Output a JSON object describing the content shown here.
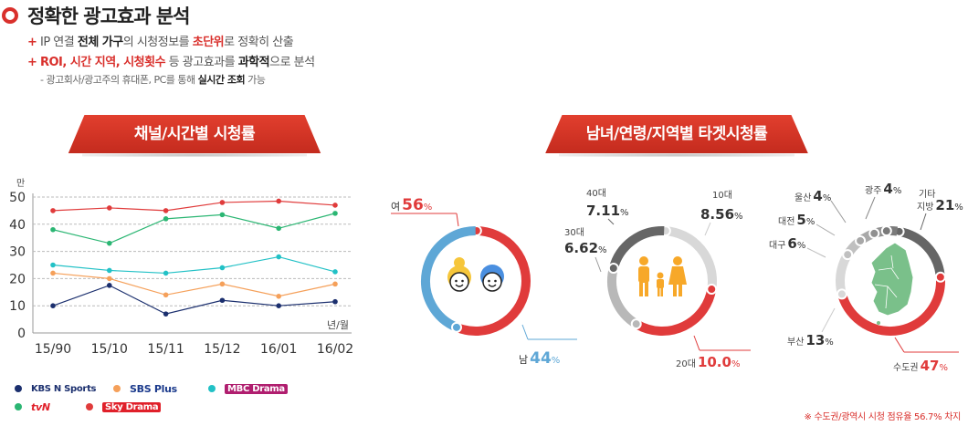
{
  "header": {
    "title": "정확한 광고효과 분석",
    "bullet1": {
      "plus": "+",
      "part1": "IP 연결 ",
      "part2": "전체 가구",
      "part3": "의 시청정보를 ",
      "part4": "초단위",
      "part5": "로 정확히 산출"
    },
    "bullet2": {
      "plus": "+",
      "part1": "ROI, 시간 지역, 시청횟수",
      "part2": " 등 광고효과를 ",
      "part3": "과학적",
      "part4": "으로 분석"
    },
    "subnote": {
      "part1": "- 광고회사/광고주의 휴대폰, PC를 통해 ",
      "part2": "실시간 조회",
      "part3": " 가능"
    },
    "accent_color": "#d9302c"
  },
  "ribbons": {
    "left": "채널/시간별 시청률",
    "right": "남녀/연령/지역별 타겟시청률"
  },
  "chart_data": [
    {
      "type": "line",
      "title": "채널/시간별 시청률",
      "ylabel": "만",
      "xlabel": "년/월",
      "categories": [
        "15/90",
        "15/10",
        "15/11",
        "15/12",
        "16/01",
        "16/02"
      ],
      "ylim": [
        0,
        50
      ],
      "yticks": [
        0,
        10,
        20,
        30,
        40,
        50
      ],
      "grid": true,
      "series": [
        {
          "name": "KBS N Sports",
          "color": "#1b2f6e",
          "values": [
            10,
            17.5,
            7,
            12,
            10,
            11.5
          ]
        },
        {
          "name": "SBS Plus",
          "color": "#f5a05a",
          "values": [
            22,
            20,
            14,
            18,
            13.5,
            18
          ]
        },
        {
          "name": "MBC Drama",
          "color": "#22c1c6",
          "values": [
            25,
            23,
            22,
            24,
            28,
            22.5
          ]
        },
        {
          "name": "tvN",
          "color": "#2bb673",
          "values": [
            38,
            33,
            42,
            43.5,
            38.5,
            44
          ]
        },
        {
          "name": "Sky Drama",
          "color": "#e03b3b",
          "values": [
            45,
            46,
            45,
            48,
            48.5,
            47
          ]
        }
      ]
    },
    {
      "type": "pie",
      "title": "남녀",
      "slices": [
        {
          "label": "여",
          "value": 56,
          "color": "#e03b3b"
        },
        {
          "label": "남",
          "value": 44,
          "color": "#5ea7d6"
        }
      ]
    },
    {
      "type": "pie",
      "title": "연령",
      "slices": [
        {
          "label": "10대",
          "value": 8.56,
          "color": "#d8d8d8"
        },
        {
          "label": "20대",
          "value": 10.0,
          "color": "#e03b3b"
        },
        {
          "label": "30대",
          "value": 6.62,
          "color": "#b8b8b8"
        },
        {
          "label": "40대",
          "value": 7.11,
          "color": "#666666"
        }
      ]
    },
    {
      "type": "pie",
      "title": "지역",
      "slices": [
        {
          "label": "기타 지방",
          "value": 21,
          "color": "#666666"
        },
        {
          "label": "수도권",
          "value": 47,
          "color": "#e03b3b"
        },
        {
          "label": "부산",
          "value": 13,
          "color": "#d8d8d8"
        },
        {
          "label": "대구",
          "value": 6,
          "color": "#c0c0c0"
        },
        {
          "label": "대전",
          "value": 5,
          "color": "#a8a8a8"
        },
        {
          "label": "울산",
          "value": 4,
          "color": "#909090"
        },
        {
          "label": "광주",
          "value": 4,
          "color": "#7a7a7a"
        }
      ]
    }
  ],
  "gender_labels": {
    "female": {
      "name": "여",
      "value": "56",
      "unit": "%"
    },
    "male": {
      "name": "남",
      "value": "44",
      "unit": "%"
    }
  },
  "age_labels": {
    "age10": {
      "name": "10대",
      "value": "8.56",
      "unit": "%"
    },
    "age20": {
      "name": "20대",
      "value": "10.0",
      "unit": "%"
    },
    "age30": {
      "name": "30대",
      "value": "6.62",
      "unit": "%"
    },
    "age40": {
      "name": "40대",
      "value": "7.11",
      "unit": "%"
    }
  },
  "region_labels": {
    "etc": {
      "name1": "기타",
      "name2": "지방",
      "value": "21",
      "unit": "%"
    },
    "capital": {
      "name": "수도권",
      "value": "47",
      "unit": "%"
    },
    "busan": {
      "name": "부산",
      "value": "13",
      "unit": "%"
    },
    "daegu": {
      "name": "대구",
      "value": "6",
      "unit": "%"
    },
    "daejeon": {
      "name": "대전",
      "value": "5",
      "unit": "%"
    },
    "ulsan": {
      "name": "울산",
      "value": "4",
      "unit": "%"
    },
    "gwangju": {
      "name": "광주",
      "value": "4",
      "unit": "%"
    }
  },
  "legend": [
    {
      "label": "KBS N Sports",
      "color": "#1b2f6e",
      "text_color": "#1b2f6e"
    },
    {
      "label": "SBS Plus",
      "color": "#f5a05a",
      "text_color": "#1b3a8c"
    },
    {
      "label": "MBC Drama",
      "color": "#22c1c6",
      "text_color": "#b01e6f"
    },
    {
      "label": "tvN",
      "color": "#2bb673",
      "text_color": "#e0202a"
    },
    {
      "label": "Sky Drama",
      "color": "#e03b3b",
      "text_color": "#e0202a"
    }
  ],
  "footnote": "※ 수도권/광역시 시청 점유율 56.7% 차지"
}
